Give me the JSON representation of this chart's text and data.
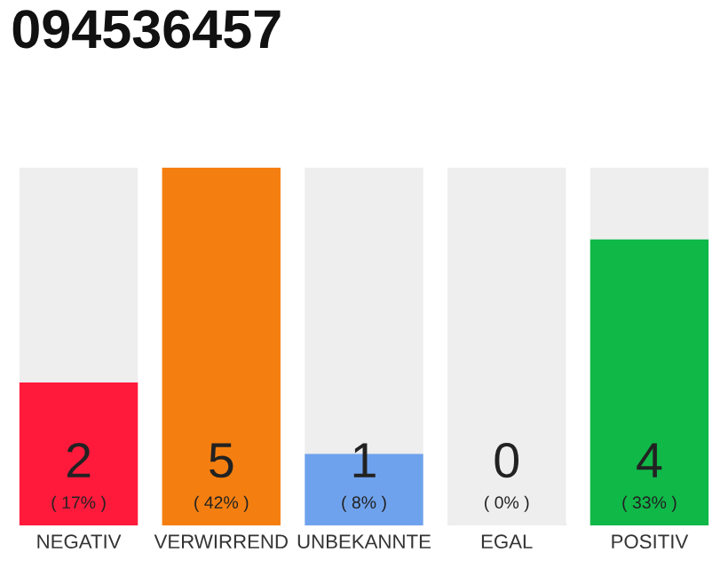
{
  "chart_data": {
    "type": "bar",
    "title": "094536457",
    "categories": [
      "NEGATIV",
      "VERWIRREND",
      "UNBEKANNTE",
      "EGAL",
      "POSITIV"
    ],
    "stacked": true,
    "ylim": [
      0,
      5
    ],
    "tick_labels": "x",
    "grid": false,
    "legend": false,
    "series": [
      {
        "colors": [
          "#ff1a3c",
          "#f47f10",
          "#6fa2ec",
          "#b0b0b0",
          "#10b848"
        ],
        "values": [
          2,
          5,
          1,
          0,
          4
        ],
        "value_labels": [
          "2",
          "5",
          "1",
          "0",
          "4"
        ]
      },
      {
        "color": "#eeeeee",
        "values": [
          3,
          0,
          4,
          5,
          1
        ]
      }
    ],
    "annotations": [
      "( 17% )",
      "( 42% )",
      "( 8% )",
      "( 0% )",
      "( 33% )"
    ]
  }
}
